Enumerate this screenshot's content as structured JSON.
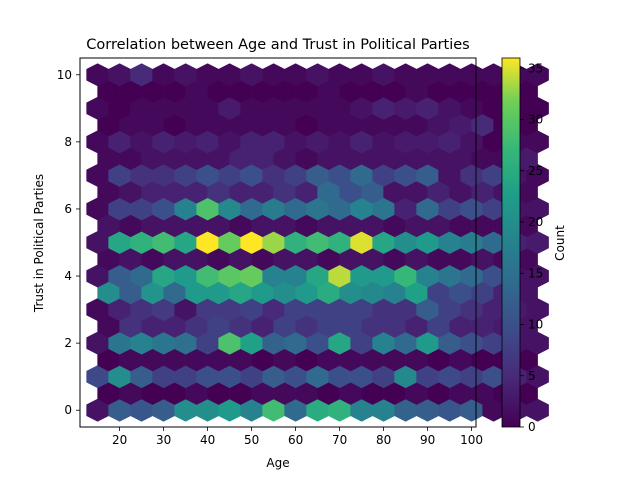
{
  "chart_data": {
    "type": "hexbin",
    "title": "Correlation between Age and Trust in Political Parties",
    "xlabel": "Age",
    "ylabel": "Trust in Political Parties",
    "xlim": [
      11,
      101
    ],
    "ylim": [
      -0.5,
      10.5
    ],
    "xticks": [
      20,
      30,
      40,
      50,
      60,
      70,
      80,
      90,
      100
    ],
    "yticks": [
      0,
      2,
      4,
      6,
      8,
      10
    ],
    "colorbar": {
      "label": "Count",
      "min": 0,
      "max": 36,
      "ticks": [
        0,
        5,
        10,
        15,
        20,
        25,
        30,
        35
      ],
      "colormap": "viridis"
    },
    "grid": {
      "x_start": 15,
      "x_step": 5,
      "y_step": 0.5
    },
    "rows": [
      {
        "y": 0.0,
        "counts": [
          2,
          12,
          11,
          12,
          20,
          20,
          22,
          18,
          28,
          14,
          25,
          26,
          18,
          18,
          13,
          12,
          11,
          12,
          1,
          2,
          2
        ]
      },
      {
        "y": 0.5,
        "counts": [
          0,
          1,
          0,
          0,
          1,
          0,
          0,
          1,
          1,
          1,
          0,
          1,
          0,
          0,
          1,
          0,
          1,
          1,
          0,
          0
        ]
      },
      {
        "y": 1.0,
        "counts": [
          9,
          20,
          12,
          8,
          8,
          10,
          10,
          8,
          12,
          10,
          14,
          10,
          10,
          8,
          19,
          8,
          9,
          8,
          10,
          4,
          2
        ]
      },
      {
        "y": 1.5,
        "counts": [
          0,
          1,
          1,
          1,
          1,
          1,
          1,
          0,
          1,
          0,
          1,
          1,
          1,
          1,
          1,
          0,
          1,
          0,
          0,
          0
        ]
      },
      {
        "y": 2.0,
        "counts": [
          2,
          16,
          18,
          16,
          15,
          8,
          29,
          23,
          13,
          14,
          10,
          24,
          8,
          18,
          14,
          22,
          12,
          10,
          8,
          2,
          2
        ]
      },
      {
        "y": 2.5,
        "counts": [
          1,
          6,
          4,
          4,
          6,
          8,
          6,
          4,
          8,
          6,
          8,
          8,
          6,
          6,
          4,
          8,
          4,
          4,
          3,
          2
        ]
      },
      {
        "y": 3.0,
        "counts": [
          1,
          4,
          6,
          7,
          2,
          7,
          7,
          8,
          5,
          8,
          8,
          8,
          8,
          6,
          6,
          12,
          8,
          6,
          4,
          3,
          2
        ]
      },
      {
        "y": 3.5,
        "counts": [
          20,
          12,
          21,
          14,
          22,
          22,
          24,
          22,
          20,
          22,
          25,
          20,
          19,
          18,
          23,
          8,
          10,
          8,
          4,
          2
        ]
      },
      {
        "y": 4.0,
        "counts": [
          2,
          12,
          14,
          24,
          22,
          28,
          30,
          31,
          18,
          18,
          24,
          34,
          22,
          22,
          27,
          18,
          16,
          14,
          10,
          2,
          2
        ]
      },
      {
        "y": 4.5,
        "counts": [
          1,
          2,
          1,
          2,
          2,
          1,
          2,
          1,
          2,
          2,
          1,
          2,
          2,
          1,
          2,
          1,
          1,
          2,
          1,
          1
        ]
      },
      {
        "y": 5.0,
        "counts": [
          2,
          24,
          26,
          28,
          24,
          36,
          31,
          36,
          33,
          26,
          28,
          26,
          35,
          24,
          20,
          22,
          18,
          17,
          14,
          4,
          3
        ]
      },
      {
        "y": 5.5,
        "counts": [
          2,
          1,
          2,
          2,
          2,
          2,
          1,
          2,
          2,
          1,
          2,
          2,
          2,
          1,
          2,
          2,
          1,
          1,
          1,
          1
        ]
      },
      {
        "y": 6.0,
        "counts": [
          1,
          8,
          8,
          10,
          18,
          29,
          19,
          14,
          17,
          14,
          16,
          14,
          18,
          16,
          4,
          14,
          8,
          10,
          8,
          2,
          2
        ]
      },
      {
        "y": 6.5,
        "counts": [
          1,
          2,
          4,
          4,
          4,
          6,
          4,
          4,
          6,
          4,
          14,
          10,
          12,
          2,
          2,
          4,
          2,
          4,
          2,
          1
        ]
      },
      {
        "y": 7.0,
        "counts": [
          1,
          8,
          6,
          6,
          8,
          10,
          8,
          10,
          6,
          8,
          12,
          10,
          14,
          8,
          10,
          12,
          2,
          6,
          8,
          2,
          1
        ]
      },
      {
        "y": 7.5,
        "counts": [
          1,
          1,
          2,
          2,
          2,
          2,
          4,
          4,
          2,
          1,
          2,
          2,
          2,
          2,
          2,
          2,
          2,
          1,
          1,
          3
        ]
      },
      {
        "y": 8.0,
        "counts": [
          1,
          4,
          2,
          4,
          3,
          4,
          2,
          4,
          4,
          2,
          3,
          2,
          4,
          2,
          3,
          3,
          4,
          2,
          0,
          1,
          1
        ]
      },
      {
        "y": 8.5,
        "counts": [
          0,
          1,
          1,
          0,
          1,
          1,
          1,
          1,
          1,
          0,
          1,
          1,
          1,
          1,
          1,
          2,
          3,
          5,
          0,
          0
        ]
      },
      {
        "y": 9.0,
        "counts": [
          1,
          0,
          1,
          1,
          1,
          1,
          3,
          1,
          1,
          1,
          1,
          1,
          2,
          4,
          3,
          4,
          2,
          1,
          0,
          0,
          0
        ]
      },
      {
        "y": 9.5,
        "counts": [
          0,
          0,
          0,
          0,
          1,
          0,
          0,
          0,
          0,
          0,
          1,
          0,
          0,
          0,
          1,
          0,
          0,
          0,
          0,
          0
        ]
      },
      {
        "y": 10.0,
        "counts": [
          1,
          2,
          5,
          1,
          2,
          1,
          1,
          2,
          1,
          1,
          2,
          1,
          1,
          2,
          1,
          1,
          1,
          1,
          1,
          1,
          1
        ]
      }
    ]
  }
}
